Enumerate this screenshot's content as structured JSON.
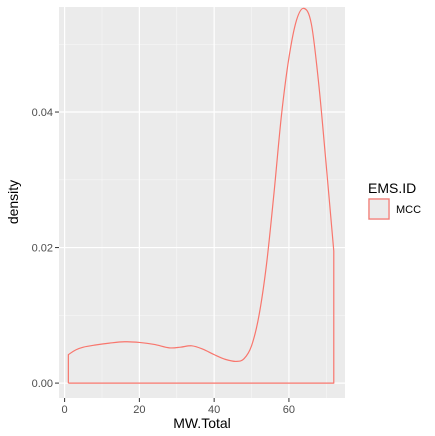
{
  "chart_data": {
    "type": "line",
    "subtype": "density",
    "xlabel": "MW.Total",
    "ylabel": "density",
    "xlim": [
      -1.5,
      75
    ],
    "ylim": [
      -0.0022,
      0.0555
    ],
    "x_ticks": [
      0,
      20,
      40,
      60
    ],
    "x_tick_labels": [
      "0",
      "20",
      "40",
      "60"
    ],
    "y_ticks": [
      0.0,
      0.02,
      0.04
    ],
    "y_tick_labels": [
      "0.00",
      "0.02",
      "0.04"
    ],
    "grid": true,
    "legend": {
      "title": "EMS.ID",
      "position": "right",
      "entries": [
        {
          "name": "MCC",
          "color": "#F8766D"
        }
      ]
    },
    "series": [
      {
        "name": "MCC",
        "color": "#F8766D",
        "x": [
          1,
          1,
          3,
          5,
          8,
          12,
          16,
          20,
          24,
          28,
          31,
          34,
          37,
          40,
          43,
          46,
          48,
          50,
          52,
          54,
          56,
          58,
          60,
          62,
          64,
          66,
          68,
          70,
          72,
          72,
          1
        ],
        "y": [
          0.0,
          0.0042,
          0.0049,
          0.0053,
          0.0056,
          0.0059,
          0.0061,
          0.006,
          0.0057,
          0.0052,
          0.0053,
          0.0055,
          0.005,
          0.0042,
          0.0035,
          0.0032,
          0.0036,
          0.0055,
          0.01,
          0.0175,
          0.028,
          0.0395,
          0.048,
          0.0535,
          0.0553,
          0.053,
          0.044,
          0.032,
          0.0195,
          0.0,
          0.0
        ]
      }
    ]
  }
}
